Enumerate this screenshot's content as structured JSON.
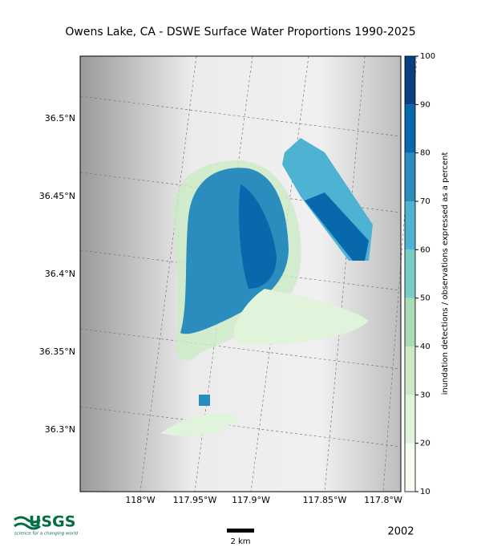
{
  "title": "Owens Lake, CA - DSWE Surface Water Proportions 1990-2025",
  "map": {
    "lat_labels": [
      "36.5°N",
      "36.45°N",
      "36.4°N",
      "36.35°N",
      "36.3°N"
    ],
    "lon_labels": [
      "118°W",
      "117.95°W",
      "117.9°W",
      "117.85°W",
      "117.8°W"
    ]
  },
  "colorbar": {
    "label": "inundation detections / observations expressed as a percent",
    "lim": [
      10,
      100
    ],
    "ticks": [
      10,
      20,
      30,
      40,
      50,
      60,
      70,
      80,
      90,
      100
    ],
    "colors": [
      "#f7fcf0",
      "#e0f3db",
      "#ccebc5",
      "#a8ddb5",
      "#7bccc4",
      "#4eb3d3",
      "#2b8cbe",
      "#0868ac",
      "#084081"
    ]
  },
  "logo": {
    "name": "USGS",
    "tagline": "science for a changing world"
  },
  "scale_bar": "2 km",
  "year": "2002"
}
